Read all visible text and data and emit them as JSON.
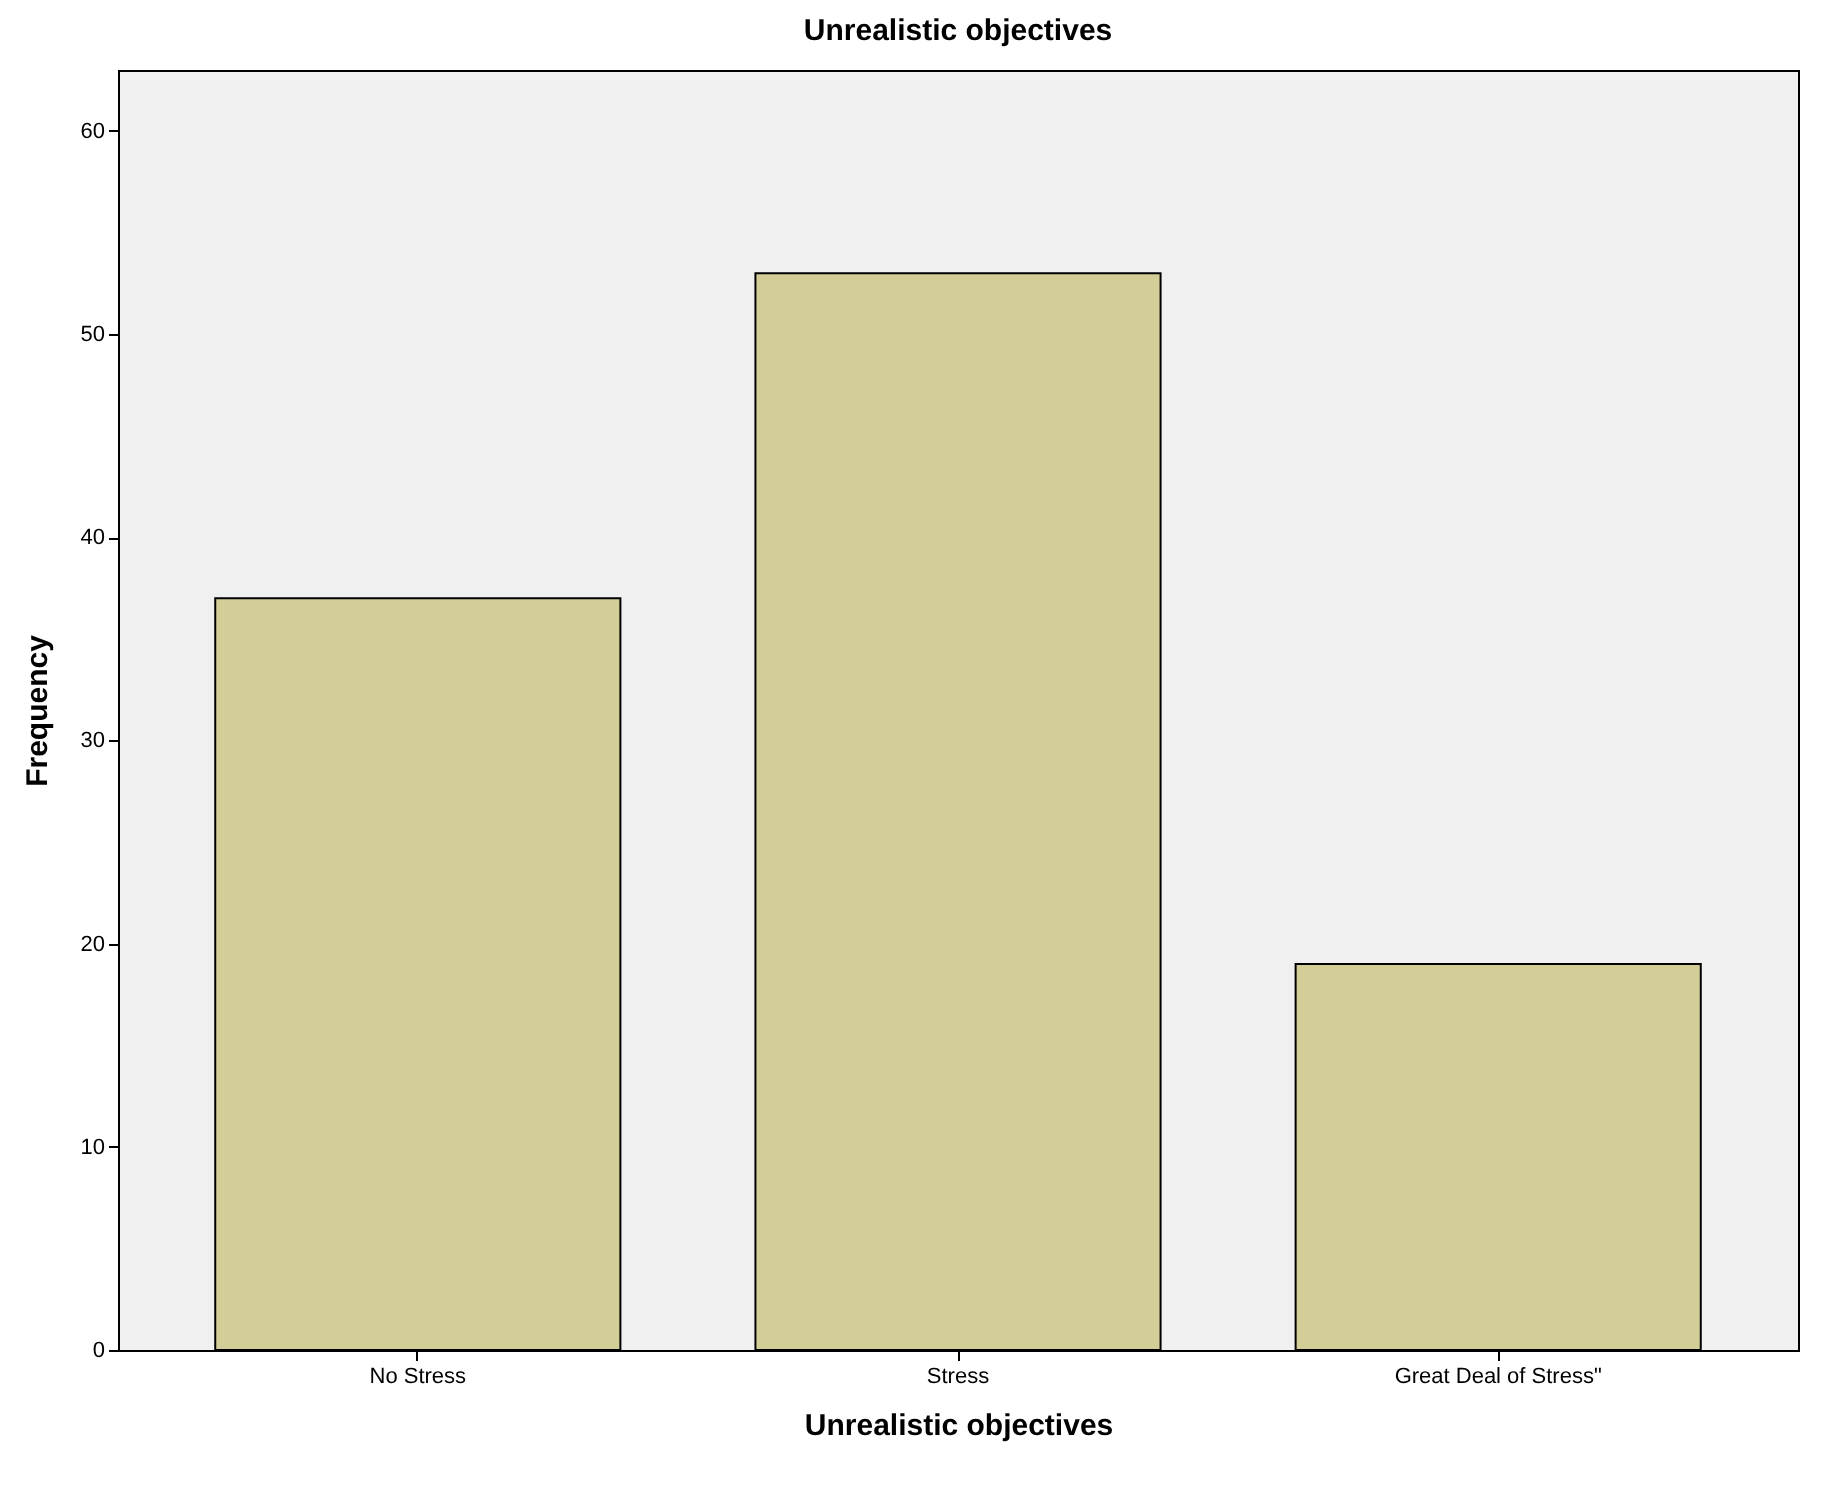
{
  "chart_data": {
    "type": "bar",
    "title": "Unrealistic objectives",
    "xlabel": "Unrealistic objectives",
    "ylabel": "Frequency",
    "categories": [
      "No Stress",
      "Stress",
      "Great Deal of Stress\""
    ],
    "values": [
      37,
      53,
      19
    ],
    "color": "#d3ce97",
    "ylim": [
      0,
      63
    ],
    "yticks": [
      0,
      10,
      20,
      30,
      40,
      50,
      60
    ],
    "grid": false
  }
}
